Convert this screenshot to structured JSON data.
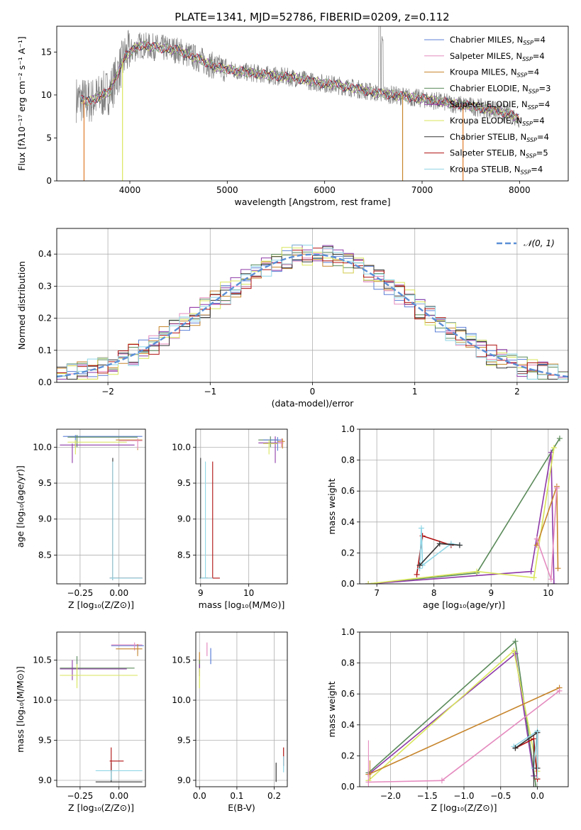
{
  "figure_title": "PLATE=1341, MJD=52786, FIBERID=0209, z=0.112",
  "colors": {
    "Chabrier MILES": "#5b7fd6",
    "Salpeter MILES": "#e58bbf",
    "Kroupa MILES": "#c7852c",
    "Chabrier ELODIE": "#5a8a5a",
    "Salpeter ELODIE": "#8e3aa8",
    "Kroupa ELODIE": "#d9e65a",
    "Chabrier STELIB": "#333333",
    "Salpeter STELIB": "#b01010",
    "Kroupa STELIB": "#8fd6e6",
    "Gaussian": "#5b8fd6",
    "Data": "#7f7f7f",
    "Orange": "#e07b2a"
  },
  "chart_data": [
    {
      "id": "spectrum",
      "type": "line",
      "title": "PLATE=1341, MJD=52786, FIBERID=0209, z=0.112",
      "xlabel": "wavelength [Angstrom, rest frame]",
      "ylabel": "Flux [fλ10⁻¹⁷ erg cm⁻² s⁻¹ A⁻¹]",
      "xlim": [
        3250,
        8500
      ],
      "ylim": [
        0,
        18
      ],
      "xticks": [
        4000,
        5000,
        6000,
        7000,
        8000
      ],
      "yticks": [
        0,
        5,
        10,
        15
      ],
      "grid": false,
      "legend_position": "top-right",
      "continuum": {
        "x": [
          3450,
          3600,
          3800,
          3950,
          4100,
          4300,
          4500,
          4700,
          4900,
          5100,
          5300,
          5500,
          5700,
          5900,
          6100,
          6300,
          6500,
          6700,
          6900,
          7100,
          7300,
          7500,
          7700,
          7900,
          8000
        ],
        "y": [
          9.5,
          9.3,
          10.5,
          14.5,
          15.8,
          15.5,
          15.2,
          14.2,
          13.2,
          12.8,
          12.5,
          12.2,
          12.0,
          11.5,
          11.2,
          10.8,
          10.3,
          10.0,
          9.7,
          9.4,
          9.0,
          8.7,
          8.3,
          7.8,
          7.2
        ]
      },
      "legend": [
        "Chabrier MILES, N_SSP=4",
        "Salpeter MILES, N_SSP=4",
        "Kroupa MILES, N_SSP=4",
        "Chabrier ELODIE, N_SSP=3",
        "Salpeter ELODIE, N_SSP=4",
        "Kroupa ELODIE, N_SSP=4",
        "Chabrier STELIB, N_SSP=4",
        "Salpeter STELIB, N_SSP=5",
        "Kroupa STELIB, N_SSP=4"
      ]
    },
    {
      "id": "residuals",
      "type": "line",
      "xlabel": "(data-model)/error",
      "ylabel": "Normed distribution",
      "xlim": [
        -2.5,
        2.5
      ],
      "ylim": [
        0,
        0.48
      ],
      "xticks": [
        -2,
        -1,
        0,
        1,
        2
      ],
      "yticks": [
        0.0,
        0.1,
        0.2,
        0.3,
        0.4
      ],
      "grid": true,
      "legend_position": "top-right",
      "legend": [
        "𝒩(0, 1)"
      ]
    },
    {
      "id": "age_vs_Z",
      "type": "scatter",
      "xlabel": "Z [log₁₀(Z/Z⊙)]",
      "ylabel": "age [log₁₀(age/yr)]",
      "xlim": [
        -0.4,
        0.17
      ],
      "ylim": [
        8.1,
        10.25
      ],
      "xticks": [
        -0.25,
        0.0
      ],
      "yticks": [
        8.5,
        9.0,
        9.5,
        10.0
      ],
      "grid": true
    },
    {
      "id": "age_vs_mass",
      "type": "scatter",
      "xlabel": "mass [log₁₀(M/M⊙)]",
      "xlim": [
        8.9,
        10.8
      ],
      "ylim": [
        8.1,
        10.25
      ],
      "xticks": [
        9,
        10
      ],
      "yticks": [
        8.5,
        9.0,
        9.5,
        10.0
      ],
      "grid": true
    },
    {
      "id": "massweight_vs_age",
      "type": "line",
      "xlabel": "age [log₁₀(age/yr)]",
      "ylabel": "mass weight",
      "xlim": [
        6.7,
        10.35
      ],
      "ylim": [
        0,
        1.0
      ],
      "xticks": [
        7,
        8,
        9,
        10
      ],
      "yticks": [
        0.0,
        0.2,
        0.4,
        0.6,
        0.8,
        1.0
      ],
      "grid": true
    },
    {
      "id": "mass_vs_Z",
      "type": "scatter",
      "xlabel": "Z [log₁₀(Z/Z⊙)]",
      "ylabel": "mass [log₁₀(M/M⊙)]",
      "xlim": [
        -0.4,
        0.17
      ],
      "ylim": [
        8.92,
        10.85
      ],
      "xticks": [
        -0.25,
        0.0
      ],
      "yticks": [
        9.0,
        9.5,
        10.0,
        10.5
      ],
      "grid": true
    },
    {
      "id": "mass_vs_EBV",
      "type": "scatter",
      "xlabel": "E(B-V)",
      "xlim": [
        -0.01,
        0.235
      ],
      "ylim": [
        8.92,
        10.85
      ],
      "xticks": [
        0.0,
        0.1,
        0.2
      ],
      "yticks": [
        9.0,
        9.5,
        10.0,
        10.5
      ],
      "grid": true
    },
    {
      "id": "massweight_vs_Z",
      "type": "line",
      "xlabel": "Z [log₁₀(Z/Z⊙)]",
      "ylabel": "mass weight",
      "xlim": [
        -2.42,
        0.42
      ],
      "ylim": [
        0,
        1.0
      ],
      "xticks": [
        -2.0,
        -1.5,
        -1.0,
        -0.5,
        0.0
      ],
      "yticks": [
        0.0,
        0.2,
        0.4,
        0.6,
        0.8,
        1.0
      ],
      "grid": true
    }
  ]
}
